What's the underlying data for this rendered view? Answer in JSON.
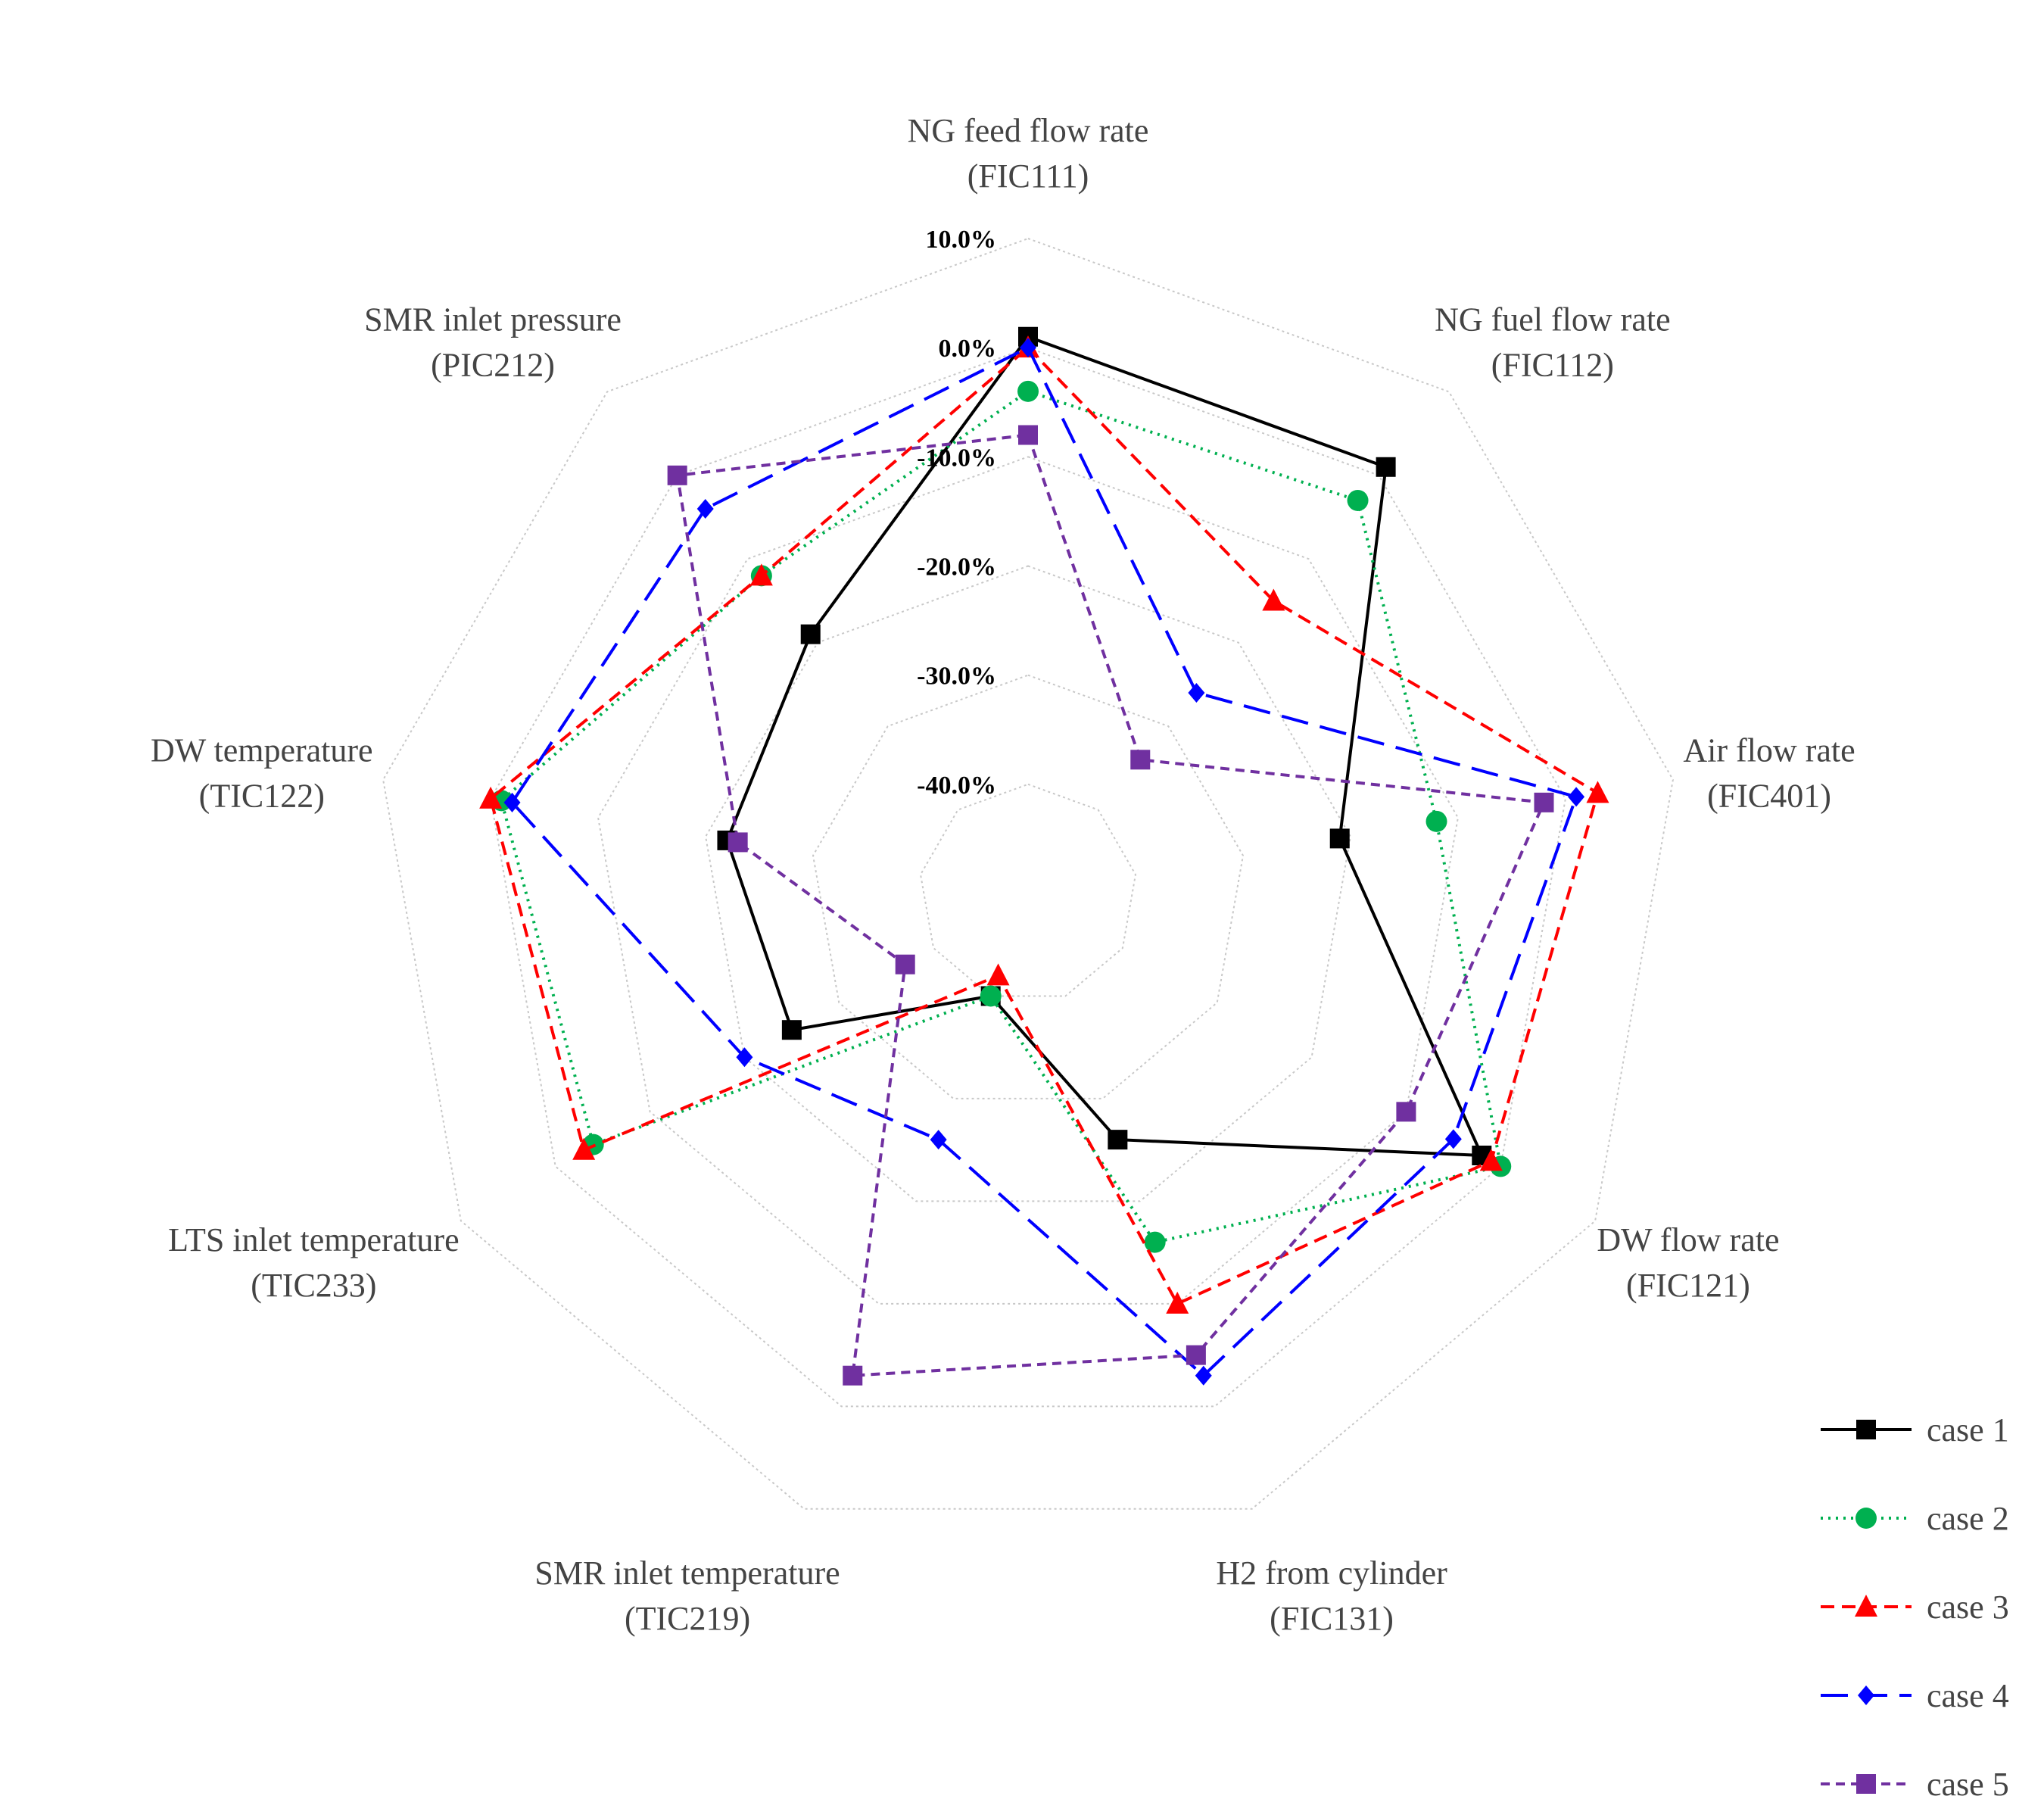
{
  "chart_data": {
    "type": "radar",
    "axes": [
      {
        "line1": "NG feed flow rate",
        "line2": "(FIC111)"
      },
      {
        "line1": "NG fuel flow rate",
        "line2": "(FIC112)"
      },
      {
        "line1": "Air flow rate",
        "line2": "(FIC401)"
      },
      {
        "line1": "DW flow rate",
        "line2": "(FIC121)"
      },
      {
        "line1": "H2 from cylinder",
        "line2": "(FIC131)"
      },
      {
        "line1": "SMR inlet temperature",
        "line2": "(TIC219)"
      },
      {
        "line1": "LTS inlet temperature",
        "line2": "(TIC233)"
      },
      {
        "line1": "DW temperature",
        "line2": "(TIC122)"
      },
      {
        "line1": "SMR inlet pressure",
        "line2": "(PIC212)"
      }
    ],
    "tick_values": [
      10,
      0,
      -10,
      -20,
      -30,
      -40
    ],
    "tick_labels": [
      "10.0%",
      "0.0%",
      "-10.0%",
      "-20.0%",
      "-30.0%",
      "-40.0%"
    ],
    "range": [
      -50,
      10
    ],
    "grid": true,
    "legend_position": "bottom-right",
    "series": [
      {
        "name": "case 1",
        "color": "#000000",
        "dash": "solid",
        "marker": "square",
        "values": [
          1,
          1,
          -21,
          -2,
          -26,
          -40,
          -25,
          -22,
          -19
        ]
      },
      {
        "name": "case 2",
        "color": "#00b050",
        "dash": "dotted",
        "marker": "circle",
        "values": [
          -4,
          -3,
          -12,
          0,
          -16,
          -40,
          -4,
          -1,
          -12
        ]
      },
      {
        "name": "case 3",
        "color": "#ff0000",
        "dash": "dashed",
        "marker": "triangle",
        "values": [
          0,
          -15,
          3,
          -1,
          -10,
          -42,
          -3,
          0,
          -12
        ]
      },
      {
        "name": "case 4",
        "color": "#0000ff",
        "dash": "longdash",
        "marker": "diamond",
        "values": [
          0,
          -26,
          1,
          -5,
          -3,
          -26,
          -20,
          -2,
          -4
        ]
      },
      {
        "name": "case 5",
        "color": "#7030a0",
        "dash": "shortdash",
        "marker": "square",
        "values": [
          -8,
          -34,
          -2,
          -10,
          -5,
          -3,
          -37,
          -23,
          0
        ]
      }
    ]
  }
}
